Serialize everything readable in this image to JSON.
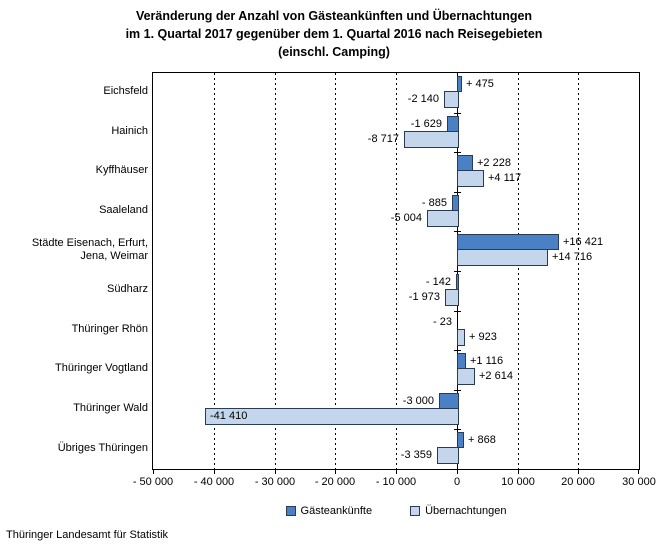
{
  "title": {
    "line1": "Veränderung der Anzahl von Gästeankünften und Übernachtungen",
    "line2": "im 1. Quartal 2017 gegenüber dem 1. Quartal 2016 nach Reisegebieten",
    "line3": "(einschl. Camping)"
  },
  "source": "Thüringer Landesamt für Statistik",
  "colors": {
    "arrivals_fill": "#4a80c4",
    "nights_fill": "#c4d6ec",
    "bar_border": "#2b3a55",
    "axis": "#000000"
  },
  "legend": {
    "items": [
      {
        "label": "Gästeankünfte",
        "color": "#4a80c4"
      },
      {
        "label": "Übernachtungen",
        "color": "#c4d6ec"
      }
    ]
  },
  "chart_data": {
    "type": "bar",
    "orientation": "horizontal",
    "title": "Veränderung der Anzahl von Gästeankünften und Übernachtungen im 1. Quartal 2017 gegenüber dem 1. Quartal 2016 nach Reisegebieten (einschl. Camping)",
    "categories": [
      "Eichsfeld",
      "Hainich",
      "Kyffhäuser",
      "Saaleland",
      "Städte Eisenach, Erfurt,\nJena, Weimar",
      "Südharz",
      "Thüringer Rhön",
      "Thüringer Vogtland",
      "Thüringer Wald",
      "Übriges Thüringen"
    ],
    "series": [
      {
        "name": "Gästeankünfte",
        "color": "#4a80c4",
        "values": [
          475,
          -1629,
          2228,
          -885,
          16421,
          -142,
          -23,
          1116,
          -3000,
          868
        ],
        "data_labels": [
          "+ 475",
          "-1 629",
          "+2 228",
          "- 885",
          "+16 421",
          "- 142",
          "- 23",
          "+1 116",
          "-3 000",
          "+ 868"
        ],
        "label_inside_bar": [
          false,
          false,
          false,
          false,
          false,
          false,
          false,
          false,
          false,
          false
        ]
      },
      {
        "name": "Übernachtungen",
        "color": "#c4d6ec",
        "values": [
          -2140,
          -8717,
          4117,
          -5004,
          14716,
          -1973,
          923,
          2614,
          -41410,
          -3359
        ],
        "data_labels": [
          "-2 140",
          "-8 717",
          "+4 117",
          "-5 004",
          "+14 716",
          "-1 973",
          "+ 923",
          "+2 614",
          "-41 410",
          "-3 359"
        ],
        "label_inside_bar": [
          false,
          false,
          false,
          false,
          false,
          false,
          false,
          false,
          true,
          false
        ]
      }
    ],
    "xlim": [
      -50000,
      30000
    ],
    "xticks": [
      -50000,
      -40000,
      -30000,
      -20000,
      -10000,
      0,
      10000,
      20000,
      30000
    ],
    "xtick_labels": [
      "- 50 000",
      "- 40 000",
      "- 30 000",
      "- 20 000",
      "- 10 000",
      "0",
      "10 000",
      "20 000",
      "30 000"
    ],
    "grid": "vertical-dashed-at-major-ticks",
    "legend_position": "bottom"
  }
}
